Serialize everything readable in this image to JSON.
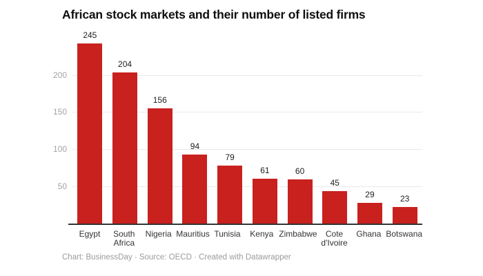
{
  "chart_data": {
    "type": "bar",
    "title": "African stock markets and their number of listed firms",
    "categories": [
      "Egypt",
      "South Africa",
      "Nigeria",
      "Mauritius",
      "Tunisia",
      "Kenya",
      "Zimbabwe",
      "Cote d'Ivoire",
      "Ghana",
      "Botswana"
    ],
    "values": [
      245,
      204,
      156,
      94,
      79,
      61,
      60,
      45,
      29,
      23
    ],
    "value_labels_shown": true,
    "xlabel": "",
    "ylabel": "",
    "ylim": [
      0,
      260
    ],
    "yticks": [
      50,
      100,
      150,
      200
    ],
    "grid": "horizontal",
    "legend": "none",
    "bar_color": "#c8211e"
  },
  "footer": {
    "text": "Chart: BusinessDay · Source: OECD · Created with Datawrapper"
  },
  "colors": {
    "bar": "#c8211e",
    "title_text": "#0f0f0f",
    "value_label_text": "#1d1d1d",
    "axis_label_text": "#333333",
    "ytick_text": "#a3a3a3",
    "gridline": "#e9e9e9",
    "baseline": "#333333",
    "footer_text": "#9b9b9b"
  }
}
